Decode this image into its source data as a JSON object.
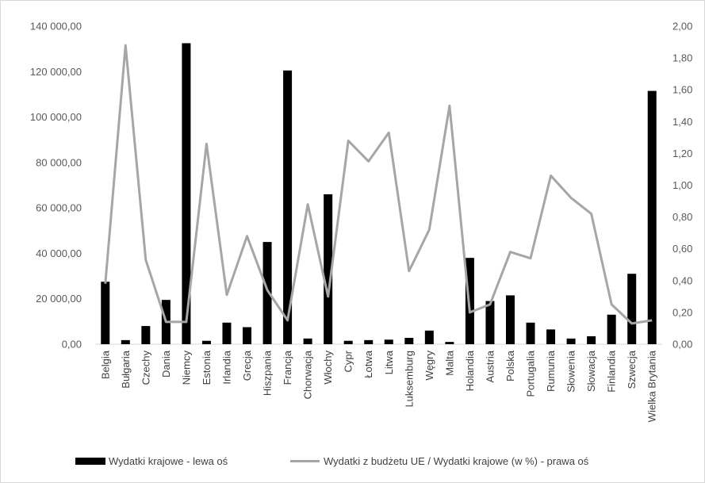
{
  "chart_data": {
    "type": "bar",
    "categories": [
      "Belgia",
      "Bułgaria",
      "Czechy",
      "Dania",
      "Niemcy",
      "Estonia",
      "Irlandia",
      "Grecja",
      "Hiszpania",
      "Francja",
      "Chorwacja",
      "Włochy",
      "Cypr",
      "Łotwa",
      "Litwa",
      "Luksemburg",
      "Węgry",
      "Malta",
      "Holandia",
      "Austria",
      "Polska",
      "Portugalia",
      "Rumunia",
      "Słowenia",
      "Słowacja",
      "Finlandia",
      "Szwecja",
      "Wielka Brytania"
    ],
    "series": [
      {
        "name": "Wydatki krajowe - lewa oś",
        "type": "bar",
        "axis": "left",
        "color": "#000000",
        "values": [
          27500,
          1800,
          8000,
          19500,
          132500,
          1500,
          9500,
          7500,
          45000,
          120500,
          2500,
          66000,
          1500,
          1800,
          2000,
          2800,
          6000,
          1000,
          38000,
          19000,
          21500,
          9500,
          6500,
          2500,
          3500,
          13000,
          31000,
          111500
        ]
      },
      {
        "name": "Wydatki z budżetu UE / Wydatki krajowe (w %) - prawa oś",
        "type": "line",
        "axis": "right",
        "color": "#a6a6a6",
        "values": [
          0.38,
          1.88,
          0.53,
          0.14,
          0.14,
          1.26,
          0.31,
          0.68,
          0.34,
          0.15,
          0.88,
          0.3,
          1.28,
          1.15,
          1.33,
          0.46,
          0.72,
          1.5,
          0.2,
          0.25,
          0.58,
          0.54,
          1.06,
          0.92,
          0.82,
          0.25,
          0.13,
          0.15
        ]
      }
    ],
    "y_left": {
      "ylim": [
        0,
        140000
      ],
      "ticks": [
        0,
        20000,
        40000,
        60000,
        80000,
        100000,
        120000,
        140000
      ],
      "tick_labels": [
        "0,00",
        "20 000,00",
        "40 000,00",
        "60 000,00",
        "80 000,00",
        "100 000,00",
        "120 000,00",
        "140 000,00"
      ]
    },
    "y_right": {
      "ylim": [
        0,
        2
      ],
      "ticks": [
        0,
        0.2,
        0.4,
        0.6,
        0.8,
        1.0,
        1.2,
        1.4,
        1.6,
        1.8,
        2.0
      ],
      "tick_labels": [
        "0,00",
        "0,20",
        "0,40",
        "0,60",
        "0,80",
        "1,00",
        "1,20",
        "1,40",
        "1,60",
        "1,80",
        "2,00"
      ]
    },
    "grid": false,
    "legend_position": "bottom"
  }
}
